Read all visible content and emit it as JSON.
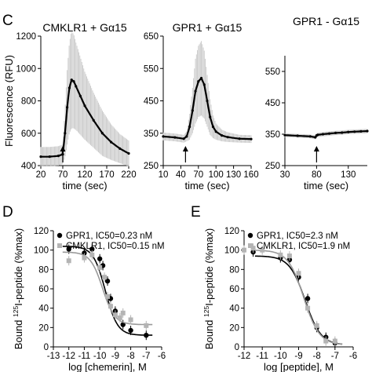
{
  "panels": {
    "c_letter": "C",
    "d_letter": "D",
    "e_letter": "E"
  },
  "chart_data": [
    {
      "type": "line",
      "title": "CMKLR1 + Gα15",
      "xlabel": "time (sec)",
      "ylabel": "Fluorescence (RFU)",
      "xlim": [
        20,
        220
      ],
      "ylim": [
        400,
        1200
      ],
      "x_ticks": [
        20,
        70,
        120,
        170,
        220
      ],
      "y_ticks": [
        400,
        600,
        800,
        1000,
        1200
      ],
      "arrow_x": 70,
      "series": [
        {
          "x": [
            20,
            40,
            60,
            70,
            75,
            80,
            85,
            90,
            95,
            100,
            110,
            120,
            140,
            160,
            180,
            200,
            220
          ],
          "y": [
            455,
            455,
            460,
            470,
            600,
            760,
            880,
            930,
            920,
            890,
            830,
            770,
            680,
            600,
            545,
            505,
            475
          ],
          "err": [
            60,
            60,
            60,
            60,
            150,
            230,
            280,
            300,
            290,
            270,
            240,
            210,
            170,
            140,
            110,
            90,
            80
          ]
        }
      ]
    },
    {
      "type": "line",
      "title": "GPR1 + Gα15",
      "xlabel": "time (sec)",
      "ylabel": "",
      "xlim": [
        10,
        160
      ],
      "ylim": [
        250,
        650
      ],
      "x_ticks": [
        10,
        40,
        70,
        100,
        130,
        160
      ],
      "y_ticks": [
        250,
        350,
        450,
        550,
        650
      ],
      "arrow_x": 48,
      "series": [
        {
          "x": [
            10,
            30,
            45,
            50,
            55,
            60,
            65,
            70,
            75,
            80,
            85,
            90,
            95,
            100,
            110,
            120,
            140,
            160
          ],
          "y": [
            340,
            337,
            333,
            340,
            370,
            420,
            480,
            510,
            520,
            500,
            450,
            400,
            370,
            355,
            343,
            338,
            333,
            332
          ],
          "err": [
            12,
            12,
            12,
            15,
            40,
            70,
            100,
            110,
            115,
            105,
            80,
            55,
            35,
            25,
            18,
            15,
            12,
            12
          ]
        }
      ]
    },
    {
      "type": "line",
      "title": "GPR1 - Gα15",
      "xlabel": "time (sec)",
      "ylabel": "",
      "xlim": [
        30,
        160
      ],
      "ylim": [
        250,
        600
      ],
      "x_ticks": [
        30,
        80,
        130
      ],
      "y_ticks": [
        250,
        350,
        450,
        550
      ],
      "arrow_x": 80,
      "series": [
        {
          "x": [
            30,
            50,
            70,
            78,
            80,
            82,
            90,
            100,
            110,
            120,
            130,
            140,
            150,
            160
          ],
          "y": [
            347,
            345,
            343,
            340,
            346,
            348,
            350,
            352,
            354,
            355,
            357,
            358,
            359,
            360
          ],
          "err": [
            6,
            6,
            6,
            6,
            7,
            7,
            7,
            7,
            7,
            7,
            7,
            7,
            7,
            7
          ]
        }
      ]
    },
    {
      "type": "scatter",
      "title": "",
      "xlabel": "log [chemerin], M",
      "ylabel_prefix": "Bound ",
      "ylabel_sup": "125",
      "ylabel_suffix": "I-peptide (%max)",
      "xlim": [
        -13,
        -6
      ],
      "ylim": [
        0,
        120
      ],
      "x_ticks": [
        -13,
        -12,
        -11,
        -10,
        -9,
        -8,
        -7,
        -6
      ],
      "y_ticks": [
        0,
        20,
        40,
        60,
        80,
        100,
        120
      ],
      "series": [
        {
          "name": "GPR1, IC50=0.23 nM",
          "color": "#000000",
          "marker": "circle",
          "x": [
            -12,
            -11,
            -10.5,
            -10,
            -9.8,
            -9.5,
            -9.3,
            -9,
            -8.5,
            -8,
            -7
          ],
          "y": [
            101,
            97,
            101,
            91,
            84,
            68,
            50,
            37,
            23,
            17,
            12
          ],
          "curve": {
            "top": 104,
            "bottom": 12,
            "logIC50": -9.64,
            "hill": 1.1
          }
        },
        {
          "name": "CMKLR1, IC50=0.15 nM",
          "color": "#b4b4b4",
          "marker": "square",
          "x": [
            -12,
            -11,
            -10.5,
            -10,
            -9.7,
            -9.5,
            -9.3,
            -9,
            -8.7,
            -8.5,
            -8,
            -7
          ],
          "y": [
            89,
            92,
            95,
            82,
            72,
            52,
            42,
            33,
            30,
            35,
            28,
            22
          ],
          "curve": {
            "top": 98,
            "bottom": 23,
            "logIC50": -9.82,
            "hill": 1.1
          }
        }
      ]
    },
    {
      "type": "scatter",
      "title": "",
      "xlabel": "log [peptide], M",
      "ylabel_prefix": "Bound ",
      "ylabel_sup": "125",
      "ylabel_suffix": "I-peptide (%max)",
      "xlim": [
        -12,
        -6
      ],
      "ylim": [
        0,
        120
      ],
      "x_ticks": [
        -12,
        -11,
        -10,
        -9,
        -8,
        -7,
        -6
      ],
      "y_ticks": [
        0,
        20,
        40,
        60,
        80,
        100,
        120
      ],
      "series": [
        {
          "name": "GPR1, IC50=2.3 nM",
          "color": "#000000",
          "marker": "circle",
          "x": [
            -11.5,
            -10,
            -9.5,
            -9,
            -8.5,
            -8,
            -7.5,
            -7
          ],
          "y": [
            98,
            92,
            90,
            72,
            50,
            20,
            10,
            4
          ],
          "curve": {
            "top": 94,
            "bottom": 2,
            "logIC50": -8.64,
            "hill": 1.0
          }
        },
        {
          "name": "CMKLR1, IC50=1.9 nM",
          "color": "#b4b4b4",
          "marker": "square",
          "x": [
            -12,
            -11.5,
            -11,
            -10,
            -9.5,
            -9,
            -8.5,
            -8,
            -7.5,
            -7
          ],
          "y": [
            100,
            102,
            100,
            95,
            94,
            76,
            40,
            22,
            6,
            6
          ],
          "curve": {
            "top": 100,
            "bottom": 2,
            "logIC50": -8.72,
            "hill": 1.0
          }
        }
      ]
    }
  ]
}
